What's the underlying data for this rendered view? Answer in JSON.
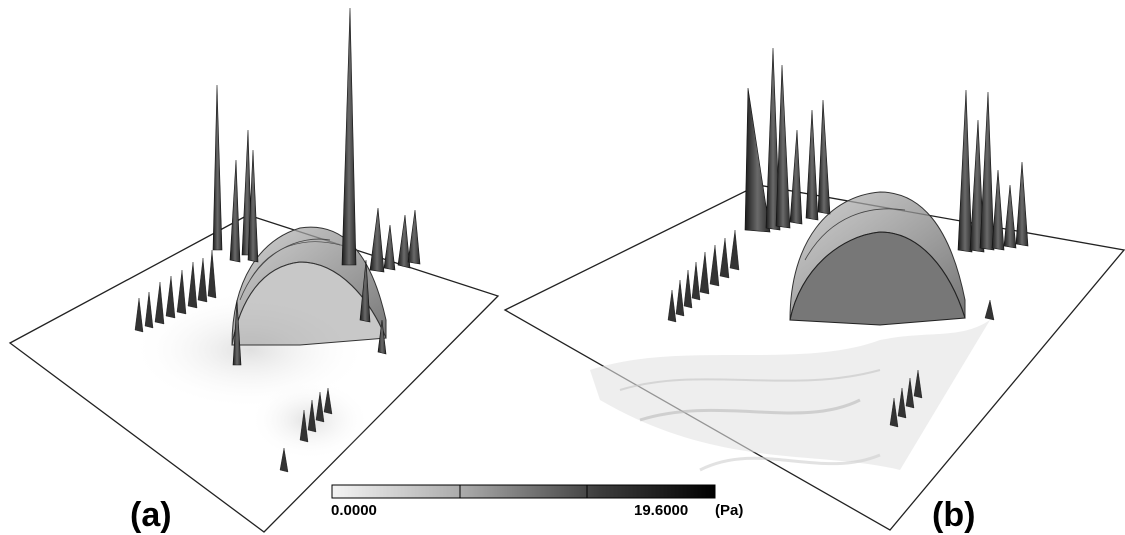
{
  "figure": {
    "panels": [
      {
        "label": "(a)"
      },
      {
        "label": "(b)"
      }
    ],
    "colorbar": {
      "min_label": "0.0000",
      "max_label": "19.6000",
      "unit": "(Pa)",
      "min_value": 0,
      "max_value": 19.6,
      "gradient_colors": [
        "#f2f2f2",
        "#6a6a6a",
        "#000000"
      ]
    }
  }
}
